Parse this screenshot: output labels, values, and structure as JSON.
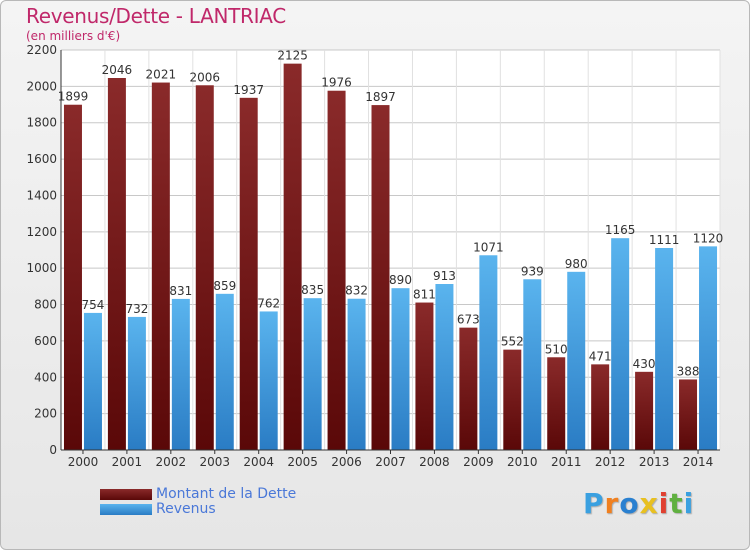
{
  "title": "Revenus/Dette - LANTRIAC",
  "subtitle": "(en milliers d'€)",
  "logo": {
    "text": "Proxiti",
    "colors": [
      "#3aa0e0",
      "#f08020",
      "#2a80d0",
      "#e8c020",
      "#e04030",
      "#60b040",
      "#3aa0e0"
    ]
  },
  "colors": {
    "dette": "#7a1a1a",
    "revenus": "#3a9ae0",
    "title": "#c0286a"
  },
  "chart_data": {
    "type": "bar",
    "title": "Revenus/Dette - LANTRIAC",
    "subtitle": "(en milliers d'€)",
    "xlabel": "",
    "ylabel": "",
    "categories": [
      "2000",
      "2001",
      "2002",
      "2003",
      "2004",
      "2005",
      "2006",
      "2007",
      "2008",
      "2009",
      "2010",
      "2011",
      "2012",
      "2013",
      "2014"
    ],
    "series": [
      {
        "name": "Montant de la Dette",
        "values": [
          1899,
          2046,
          2021,
          2006,
          1937,
          2125,
          1976,
          1897,
          811,
          673,
          552,
          510,
          471,
          430,
          388
        ]
      },
      {
        "name": "Revenus",
        "values": [
          754,
          732,
          831,
          859,
          762,
          835,
          832,
          890,
          913,
          1071,
          939,
          980,
          1165,
          1111,
          1120
        ]
      }
    ],
    "ylim": [
      0,
      2200
    ],
    "yticks": [
      0,
      200,
      400,
      600,
      800,
      1000,
      1200,
      1400,
      1600,
      1800,
      2000,
      2200
    ],
    "grid": true,
    "legend_position": "bottom-left"
  }
}
